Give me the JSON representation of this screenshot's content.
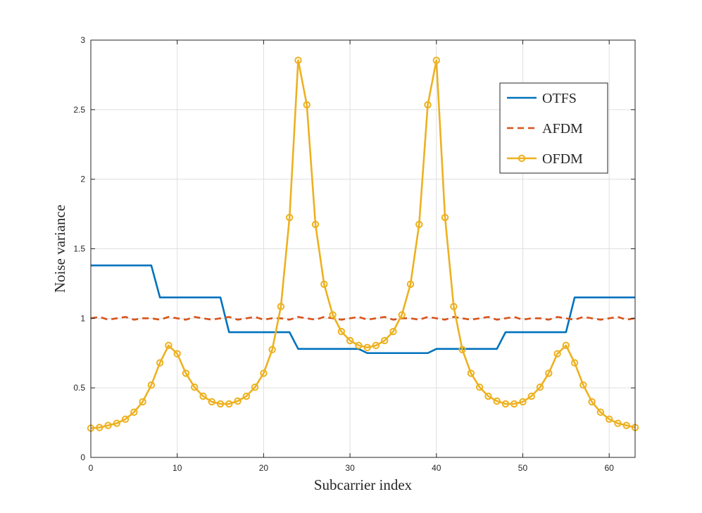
{
  "chart_data": {
    "type": "line",
    "title": "",
    "xlabel": "Subcarrier index",
    "ylabel": "Noise variance",
    "xlim": [
      0,
      63
    ],
    "ylim": [
      0,
      3
    ],
    "xticks": [
      0,
      10,
      20,
      30,
      40,
      50,
      60
    ],
    "yticks": [
      0,
      0.5,
      1,
      1.5,
      2,
      2.5,
      3
    ],
    "xtick_labels": [
      "0",
      "10",
      "20",
      "30",
      "40",
      "50",
      "60"
    ],
    "ytick_labels": [
      "0",
      "0.5",
      "1",
      "1.5",
      "2",
      "2.5",
      "3"
    ],
    "grid": true,
    "legend_position": "top-right",
    "series": [
      {
        "name": "OTFS",
        "color": "#0072BD",
        "style": "solid",
        "marker": "none",
        "x": [
          0,
          7,
          8,
          15,
          16,
          23,
          24,
          31,
          32,
          39,
          40,
          47,
          48,
          55,
          56,
          63
        ],
        "values": [
          1.38,
          1.38,
          1.15,
          1.15,
          0.9,
          0.9,
          0.78,
          0.78,
          0.75,
          0.75,
          0.78,
          0.78,
          0.9,
          0.9,
          1.15,
          1.15
        ]
      },
      {
        "name": "AFDM",
        "color": "#D95319",
        "style": "dashed",
        "marker": "none",
        "x": [
          0,
          1,
          2,
          3,
          4,
          5,
          6,
          7,
          8,
          9,
          10,
          11,
          12,
          13,
          14,
          15,
          16,
          17,
          18,
          19,
          20,
          21,
          22,
          23,
          24,
          25,
          26,
          27,
          28,
          29,
          30,
          31,
          32,
          33,
          34,
          35,
          36,
          37,
          38,
          39,
          40,
          41,
          42,
          43,
          44,
          45,
          46,
          47,
          48,
          49,
          50,
          51,
          52,
          53,
          54,
          55,
          56,
          57,
          58,
          59,
          60,
          61,
          62,
          63
        ],
        "values": [
          1.0,
          1.01,
          0.99,
          1.0,
          1.01,
          0.99,
          1.0,
          1.0,
          0.99,
          1.01,
          1.0,
          0.99,
          1.01,
          1.0,
          0.99,
          1.0,
          1.01,
          0.99,
          1.0,
          1.01,
          0.99,
          1.0,
          1.0,
          0.99,
          1.01,
          1.0,
          0.99,
          1.01,
          1.0,
          0.99,
          1.0,
          1.01,
          0.99,
          1.0,
          1.01,
          0.99,
          1.0,
          1.0,
          0.99,
          1.01,
          1.0,
          0.99,
          1.01,
          1.0,
          0.99,
          1.0,
          1.01,
          0.99,
          1.0,
          1.01,
          0.99,
          1.0,
          1.0,
          0.99,
          1.01,
          1.0,
          0.99,
          1.01,
          1.0,
          0.99,
          1.0,
          1.01,
          0.99,
          1.0
        ]
      },
      {
        "name": "OFDM",
        "color": "#EDB120",
        "style": "solid",
        "marker": "circle",
        "x": [
          0,
          1,
          2,
          3,
          4,
          5,
          6,
          7,
          8,
          9,
          10,
          11,
          12,
          13,
          14,
          15,
          16,
          17,
          18,
          19,
          20,
          21,
          22,
          23,
          24,
          25,
          26,
          27,
          28,
          29,
          30,
          31,
          32,
          33,
          34,
          35,
          36,
          37,
          38,
          39,
          40,
          41,
          42,
          43,
          44,
          45,
          46,
          47,
          48,
          49,
          50,
          51,
          52,
          53,
          54,
          55,
          56,
          57,
          58,
          59,
          60,
          61,
          62,
          63
        ],
        "values": [
          0.21,
          0.215,
          0.23,
          0.245,
          0.275,
          0.325,
          0.4,
          0.52,
          0.68,
          0.805,
          0.745,
          0.605,
          0.505,
          0.44,
          0.4,
          0.385,
          0.385,
          0.405,
          0.44,
          0.505,
          0.605,
          0.775,
          1.085,
          1.725,
          2.855,
          2.535,
          1.675,
          1.245,
          1.025,
          0.905,
          0.84,
          0.805,
          0.79,
          0.805,
          0.84,
          0.905,
          1.025,
          1.245,
          1.675,
          2.535,
          2.855,
          1.725,
          1.085,
          0.775,
          0.605,
          0.505,
          0.44,
          0.405,
          0.385,
          0.385,
          0.4,
          0.44,
          0.505,
          0.605,
          0.745,
          0.805,
          0.68,
          0.52,
          0.4,
          0.325,
          0.275,
          0.245,
          0.23,
          0.215
        ]
      }
    ]
  }
}
